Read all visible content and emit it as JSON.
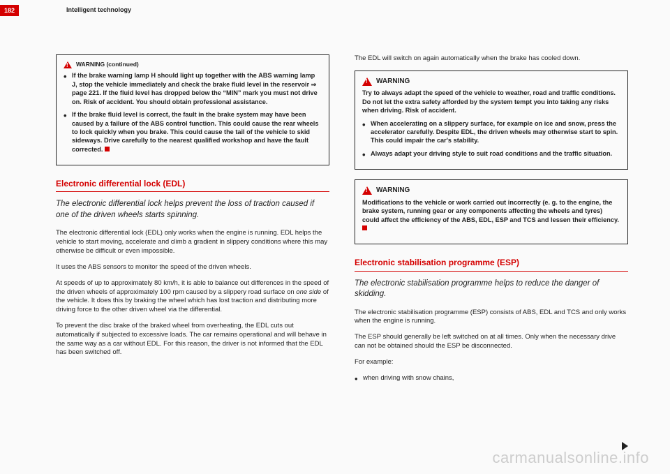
{
  "page": {
    "number": "182",
    "running_head": "Intelligent technology"
  },
  "colors": {
    "brand": "#d40000",
    "text": "#222222",
    "bg": "#fafafa"
  },
  "left": {
    "contbox": {
      "head": "WARNING (continued)",
      "b1": "If the brake warning lamp H should light up together with the ABS warning lamp J, stop the vehicle immediately and check the brake fluid level in the reservoir ⇒ page 221. If the fluid level has dropped below the “MIN” mark you must not drive on. Risk of accident. You should obtain professional assistance.",
      "b2": "If the brake fluid level is correct, the fault in the brake system may have been caused by a failure of the ABS control function. This could cause the rear wheels to lock quickly when you brake. This could cause the tail of the vehicle to skid sideways. Drive carefully to the nearest qualified workshop and have the fault corrected."
    },
    "section1": {
      "title": "Electronic differential lock (EDL)",
      "lead": "The electronic differential lock helps prevent the loss of traction caused if one of the driven wheels starts spinning.",
      "p1": "The electronic differential lock (EDL) only works when the engine is running. EDL helps the vehicle to start moving, accelerate and climb a gradient in slippery conditions where this may otherwise be difficult or even impossible.",
      "p2": "It uses the ABS sensors to monitor the speed of the driven wheels.",
      "p3_a": "At speeds of up to approximately 80 km/h, it is able to balance out differences in the speed of the driven wheels of approximately 100 rpm caused by a slippery road surface on ",
      "p3_i": "one side",
      "p3_b": " of the vehicle. It does this by braking the wheel which has lost traction and distributing more driving force to the other driven wheel via the differential.",
      "p4": "To prevent the disc brake of the braked wheel from overheating, the EDL cuts out automatically if subjected to excessive loads. The car remains operational and will behave in the same way as a car without EDL. For this reason, the driver is not informed that the EDL has been switched off."
    }
  },
  "right": {
    "intro": "The EDL will switch on again automatically when the brake has cooled down.",
    "warn1": {
      "head": "WARNING",
      "p": "Try to always adapt the speed of the vehicle to weather, road and traffic conditions. Do not let the extra safety afforded by the system tempt you into taking any risks when driving. Risk of accident.",
      "b1": "When accelerating on a slippery surface, for example on ice and snow, press the accelerator carefully. Despite EDL, the driven wheels may otherwise start to spin. This could impair the car's stability.",
      "b2": "Always adapt your driving style to suit road conditions and the traffic situation."
    },
    "warn2": {
      "head": "WARNING",
      "p": "Modifications to the vehicle  or work carried out incorrectly (e. g. to the engine, the brake system, running gear or any components affecting the wheels and tyres) could affect the efficiency of the ABS, EDL, ESP and TCS and lessen their efficiency."
    },
    "section2": {
      "title": "Electronic stabilisation programme (ESP)",
      "lead": "The electronic stabilisation programme helps to reduce the danger of skidding.",
      "p1": "The electronic stabilisation programme (ESP) consists of ABS, EDL and TCS and only works when the engine is running.",
      "p2": "The ESP should generally be left switched on at all times. Only when the necessary drive can not be obtained should the ESP be disconnected.",
      "p3": "For example:",
      "b1": "when driving with snow chains,"
    }
  },
  "watermark": "carmanualsonline.info"
}
